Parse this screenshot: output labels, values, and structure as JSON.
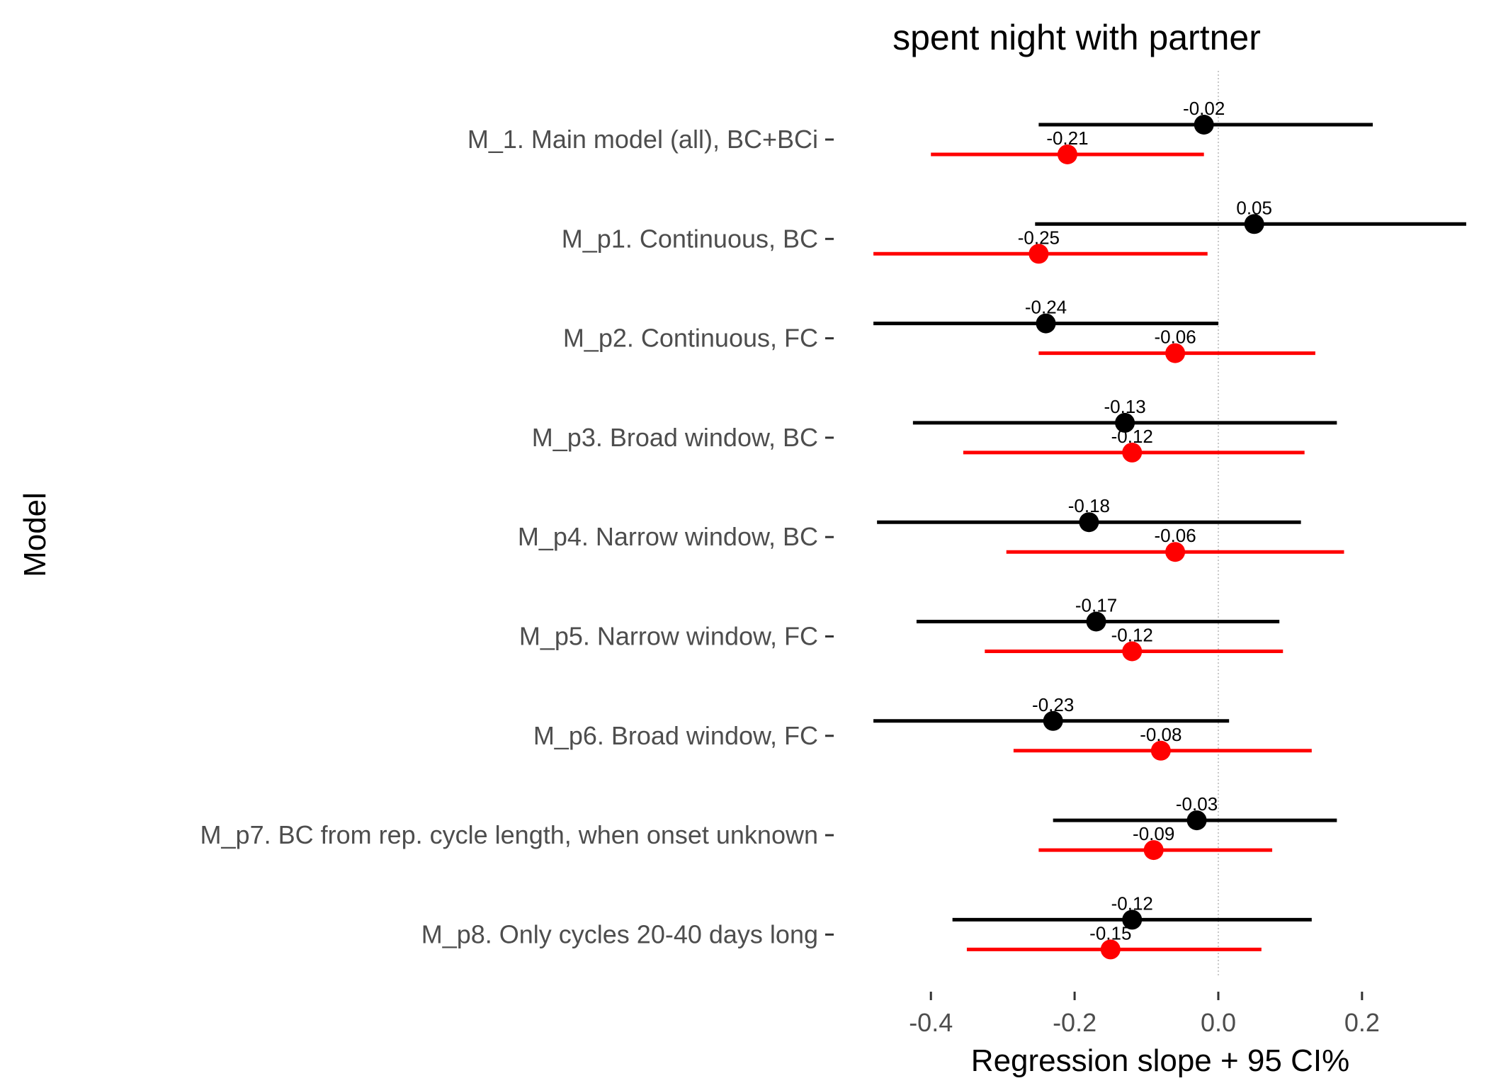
{
  "chart_data": {
    "type": "scatter",
    "subtype": "dot-and-whisker",
    "title": "spent night with partner",
    "xlabel": "Regression slope + 95 CI%",
    "ylabel": "Model",
    "xlim": [
      -0.485,
      0.35
    ],
    "xticks": [
      -0.4,
      -0.2,
      0.0,
      0.2
    ],
    "xtick_labels": [
      "-0.4",
      "-0.2",
      "0.0",
      "0.2"
    ],
    "reference_line_x": 0,
    "grid": false,
    "legend": "none",
    "categories": [
      "M_1. Main model (all), BC+BCi",
      "M_p1. Continuous, BC",
      "M_p2. Continuous, FC",
      "M_p3. Broad window, BC",
      "M_p4. Narrow window, BC",
      "M_p5. Narrow window, FC",
      "M_p6. Broad window, FC",
      "M_p7. BC from rep. cycle length, when onset unknown",
      "M_p8. Only cycles 20-40 days long"
    ],
    "series": [
      {
        "color": "#000000",
        "estimates": [
          -0.02,
          0.05,
          -0.24,
          -0.13,
          -0.18,
          -0.17,
          -0.23,
          -0.03,
          -0.12
        ],
        "estimate_labels": [
          "-0.02",
          "0.05",
          "-0.24",
          "-0.13",
          "-0.18",
          "-0.17",
          "-0.23",
          "-0.03",
          "-0.12"
        ],
        "ci_low": [
          -0.25,
          -0.255,
          -0.48,
          -0.425,
          -0.475,
          -0.42,
          -0.48,
          -0.23,
          -0.37
        ],
        "ci_high": [
          0.215,
          0.345,
          0.0,
          0.165,
          0.115,
          0.085,
          0.015,
          0.165,
          0.13
        ]
      },
      {
        "color": "#ff0000",
        "estimates": [
          -0.21,
          -0.25,
          -0.06,
          -0.12,
          -0.06,
          -0.12,
          -0.08,
          -0.09,
          -0.15
        ],
        "estimate_labels": [
          "-0.21",
          "-0.25",
          "-0.06",
          "-0.12",
          "-0.06",
          "-0.12",
          "-0.08",
          "-0.09",
          "-0.15"
        ],
        "ci_low": [
          -0.4,
          -0.48,
          -0.25,
          -0.355,
          -0.295,
          -0.325,
          -0.285,
          -0.25,
          -0.35
        ],
        "ci_high": [
          -0.02,
          -0.015,
          0.135,
          0.12,
          0.175,
          0.09,
          0.13,
          0.075,
          0.06
        ]
      }
    ]
  }
}
